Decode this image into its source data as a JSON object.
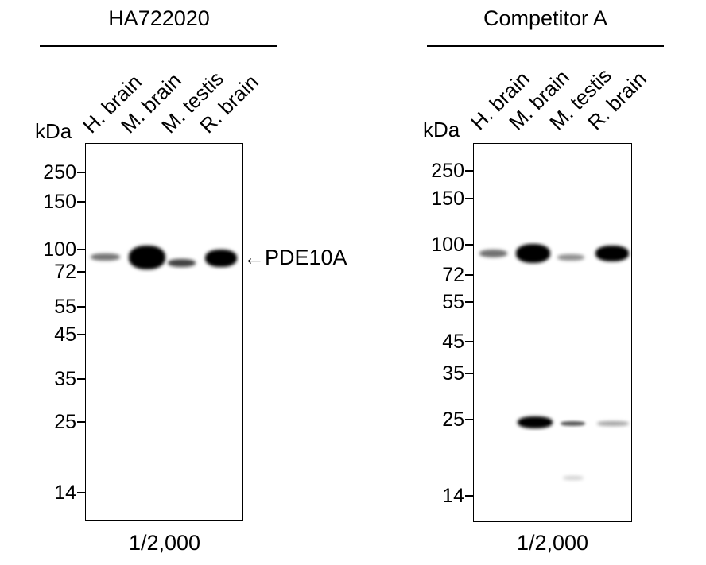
{
  "panels": [
    {
      "title": "HA722020",
      "kda_label": "kDa",
      "dilution": "1/2,000",
      "lanes": [
        "H. brain",
        "M. brain",
        "M. testis",
        "R. brain"
      ],
      "markers": [
        "250",
        "150",
        "100",
        "72",
        "55",
        "45",
        "35",
        "25",
        "14"
      ],
      "bands": [
        {
          "lane": "H. brain",
          "kda": "~90",
          "intensity": 0.45
        },
        {
          "lane": "M. brain",
          "kda": "~90",
          "intensity": 1.0
        },
        {
          "lane": "M. testis",
          "kda": "~85",
          "intensity": 0.6
        },
        {
          "lane": "R. brain",
          "kda": "~90",
          "intensity": 0.95
        }
      ],
      "annotation": "←PDE10A"
    },
    {
      "title": "Competitor A",
      "kda_label": "kDa",
      "dilution": "1/2,000",
      "lanes": [
        "H. brain",
        "M. brain",
        "M. testis",
        "R. brain"
      ],
      "markers": [
        "250",
        "150",
        "100",
        "72",
        "55",
        "45",
        "35",
        "25",
        "14"
      ],
      "bands": [
        {
          "lane": "H. brain",
          "kda": "~90",
          "intensity": 0.5
        },
        {
          "lane": "M. brain",
          "kda": "~90",
          "intensity": 1.0
        },
        {
          "lane": "M. testis",
          "kda": "~85",
          "intensity": 0.35
        },
        {
          "lane": "R. brain",
          "kda": "~90",
          "intensity": 0.95
        },
        {
          "lane": "M. brain",
          "kda": "~24",
          "intensity": 1.0
        },
        {
          "lane": "M. testis",
          "kda": "~24",
          "intensity": 0.55
        },
        {
          "lane": "R. brain",
          "kda": "~24",
          "intensity": 0.35
        },
        {
          "lane": "M. testis",
          "kda": "~16",
          "intensity": 0.12
        }
      ]
    }
  ]
}
